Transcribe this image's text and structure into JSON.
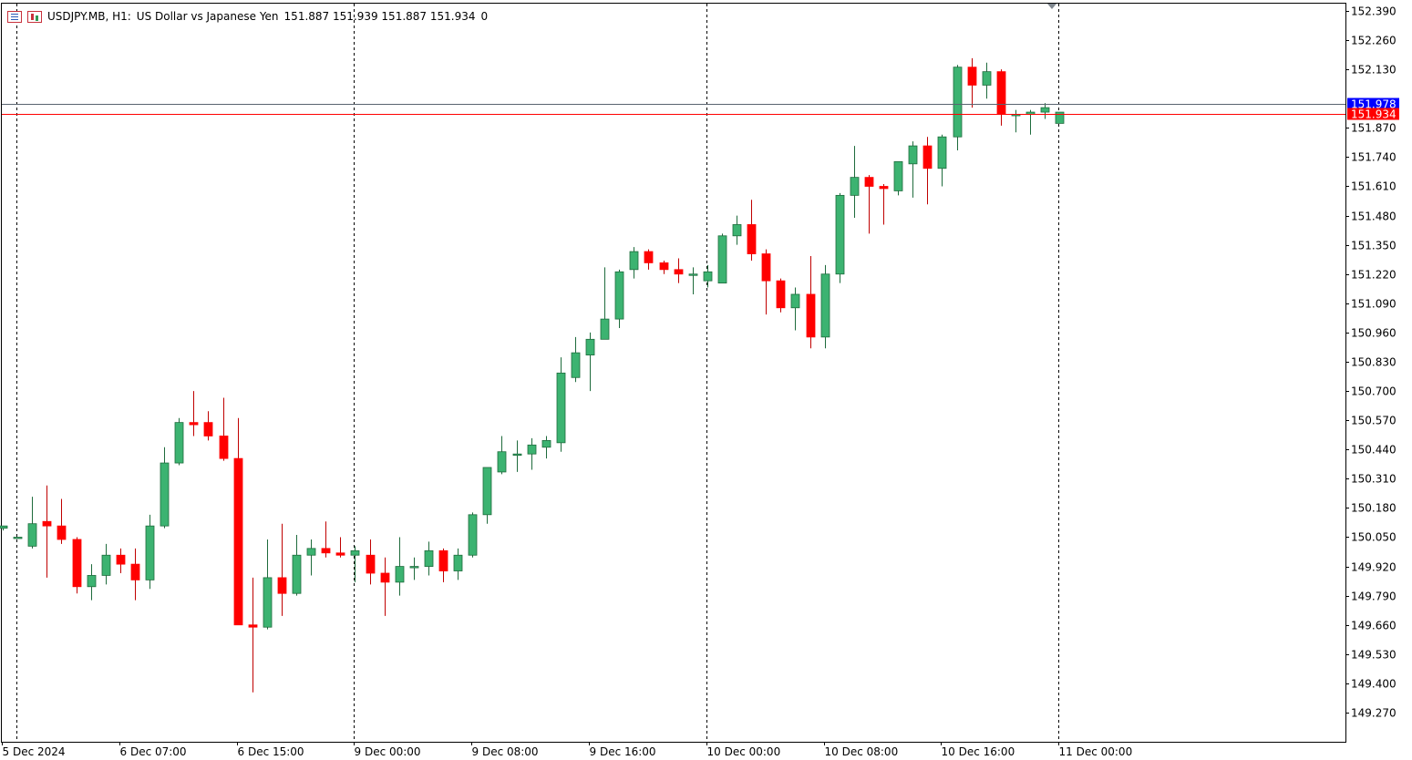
{
  "header": {
    "symbol": "USDJPY.MB, H1:",
    "description": "US Dollar vs Japanese Yen",
    "ohlc": "151.887 151.939 151.887 151.934",
    "volume": "0",
    "icons": [
      "list-icon",
      "chart-icon"
    ]
  },
  "chart_data": {
    "type": "candlestick",
    "title": "USDJPY.MB, H1:  US Dollar vs Japanese Yen",
    "xlabel": "",
    "ylabel": "",
    "ylim": [
      149.14,
      152.42
    ],
    "y_ticks": [
      "152.390",
      "152.260",
      "152.130",
      "151.870",
      "151.740",
      "151.610",
      "151.480",
      "151.350",
      "151.220",
      "151.090",
      "150.960",
      "150.830",
      "150.700",
      "150.570",
      "150.440",
      "150.310",
      "150.180",
      "150.050",
      "149.920",
      "149.790",
      "149.660",
      "149.530",
      "149.400",
      "149.270"
    ],
    "x_labels": [
      {
        "index": 0,
        "label": "5 Dec 2024"
      },
      {
        "index": 8,
        "label": "6 Dec 07:00"
      },
      {
        "index": 16,
        "label": "6 Dec 15:00"
      },
      {
        "index": 24,
        "label": "9 Dec 00:00"
      },
      {
        "index": 32,
        "label": "9 Dec 08:00"
      },
      {
        "index": 40,
        "label": "9 Dec 16:00"
      },
      {
        "index": 48,
        "label": "10 Dec 00:00"
      },
      {
        "index": 56,
        "label": "10 Dec 08:00"
      },
      {
        "index": 64,
        "label": "10 Dec 16:00"
      },
      {
        "index": 72,
        "label": "11 Dec 00:00"
      }
    ],
    "period_separators": [
      1,
      24,
      48,
      72
    ],
    "up_color": "#3cb371",
    "down_color": "#ff0000",
    "grid": false,
    "candles": [
      {
        "o": 150.09,
        "h": 150.1,
        "l": 150.08,
        "c": 150.1
      },
      {
        "o": 150.05,
        "h": 150.05,
        "l": 150.05,
        "c": 150.05
      },
      {
        "o": 150.01,
        "h": 150.23,
        "l": 150.0,
        "c": 150.11
      },
      {
        "o": 150.12,
        "h": 150.28,
        "l": 149.87,
        "c": 150.1
      },
      {
        "o": 150.1,
        "h": 150.22,
        "l": 150.02,
        "c": 150.04
      },
      {
        "o": 150.04,
        "h": 150.05,
        "l": 149.8,
        "c": 149.83
      },
      {
        "o": 149.83,
        "h": 149.93,
        "l": 149.77,
        "c": 149.88
      },
      {
        "o": 149.88,
        "h": 150.02,
        "l": 149.84,
        "c": 149.97
      },
      {
        "o": 149.97,
        "h": 150.0,
        "l": 149.89,
        "c": 149.93
      },
      {
        "o": 149.93,
        "h": 150.0,
        "l": 149.77,
        "c": 149.86
      },
      {
        "o": 149.86,
        "h": 150.15,
        "l": 149.82,
        "c": 150.1
      },
      {
        "o": 150.1,
        "h": 150.45,
        "l": 150.09,
        "c": 150.38
      },
      {
        "o": 150.38,
        "h": 150.58,
        "l": 150.37,
        "c": 150.56
      },
      {
        "o": 150.56,
        "h": 150.7,
        "l": 150.5,
        "c": 150.55
      },
      {
        "o": 150.56,
        "h": 150.61,
        "l": 150.48,
        "c": 150.5
      },
      {
        "o": 150.5,
        "h": 150.67,
        "l": 150.39,
        "c": 150.4
      },
      {
        "o": 150.4,
        "h": 150.58,
        "l": 149.66,
        "c": 149.66
      },
      {
        "o": 149.66,
        "h": 149.87,
        "l": 149.36,
        "c": 149.65
      },
      {
        "o": 149.65,
        "h": 150.04,
        "l": 149.64,
        "c": 149.87
      },
      {
        "o": 149.87,
        "h": 150.11,
        "l": 149.7,
        "c": 149.8
      },
      {
        "o": 149.8,
        "h": 150.06,
        "l": 149.79,
        "c": 149.97
      },
      {
        "o": 149.97,
        "h": 150.04,
        "l": 149.88,
        "c": 150.0
      },
      {
        "o": 150.0,
        "h": 150.12,
        "l": 149.96,
        "c": 149.98
      },
      {
        "o": 149.98,
        "h": 150.05,
        "l": 149.96,
        "c": 149.97
      },
      {
        "o": 149.97,
        "h": 150.01,
        "l": 149.85,
        "c": 149.99
      },
      {
        "o": 149.97,
        "h": 150.04,
        "l": 149.84,
        "c": 149.89
      },
      {
        "o": 149.89,
        "h": 149.96,
        "l": 149.7,
        "c": 149.85
      },
      {
        "o": 149.85,
        "h": 150.05,
        "l": 149.79,
        "c": 149.92
      },
      {
        "o": 149.92,
        "h": 149.96,
        "l": 149.86,
        "c": 149.92
      },
      {
        "o": 149.92,
        "h": 150.03,
        "l": 149.88,
        "c": 149.99
      },
      {
        "o": 149.99,
        "h": 150.0,
        "l": 149.85,
        "c": 149.9
      },
      {
        "o": 149.9,
        "h": 150.0,
        "l": 149.86,
        "c": 149.97
      },
      {
        "o": 149.97,
        "h": 150.16,
        "l": 149.96,
        "c": 150.15
      },
      {
        "o": 150.15,
        "h": 150.35,
        "l": 150.11,
        "c": 150.36
      },
      {
        "o": 150.34,
        "h": 150.5,
        "l": 150.33,
        "c": 150.43
      },
      {
        "o": 150.42,
        "h": 150.48,
        "l": 150.34,
        "c": 150.42
      },
      {
        "o": 150.42,
        "h": 150.49,
        "l": 150.35,
        "c": 150.46
      },
      {
        "o": 150.45,
        "h": 150.5,
        "l": 150.4,
        "c": 150.48
      },
      {
        "o": 150.47,
        "h": 150.85,
        "l": 150.43,
        "c": 150.78
      },
      {
        "o": 150.76,
        "h": 150.94,
        "l": 150.74,
        "c": 150.87
      },
      {
        "o": 150.86,
        "h": 150.96,
        "l": 150.7,
        "c": 150.93
      },
      {
        "o": 150.93,
        "h": 151.25,
        "l": 150.93,
        "c": 151.02
      },
      {
        "o": 151.02,
        "h": 151.24,
        "l": 150.98,
        "c": 151.23
      },
      {
        "o": 151.24,
        "h": 151.34,
        "l": 151.2,
        "c": 151.32
      },
      {
        "o": 151.32,
        "h": 151.33,
        "l": 151.24,
        "c": 151.27
      },
      {
        "o": 151.27,
        "h": 151.28,
        "l": 151.22,
        "c": 151.24
      },
      {
        "o": 151.24,
        "h": 151.29,
        "l": 151.18,
        "c": 151.22
      },
      {
        "o": 151.22,
        "h": 151.25,
        "l": 151.13,
        "c": 151.22
      },
      {
        "o": 151.19,
        "h": 151.26,
        "l": 151.16,
        "c": 151.23
      },
      {
        "o": 151.18,
        "h": 151.4,
        "l": 151.18,
        "c": 151.39
      },
      {
        "o": 151.39,
        "h": 151.48,
        "l": 151.35,
        "c": 151.44
      },
      {
        "o": 151.44,
        "h": 151.55,
        "l": 151.28,
        "c": 151.31
      },
      {
        "o": 151.31,
        "h": 151.33,
        "l": 151.04,
        "c": 151.19
      },
      {
        "o": 151.19,
        "h": 151.2,
        "l": 151.05,
        "c": 151.07
      },
      {
        "o": 151.07,
        "h": 151.16,
        "l": 150.97,
        "c": 151.13
      },
      {
        "o": 151.13,
        "h": 151.3,
        "l": 150.89,
        "c": 150.94
      },
      {
        "o": 150.94,
        "h": 151.26,
        "l": 150.89,
        "c": 151.22
      },
      {
        "o": 151.22,
        "h": 151.58,
        "l": 151.18,
        "c": 151.57
      },
      {
        "o": 151.57,
        "h": 151.79,
        "l": 151.47,
        "c": 151.65
      },
      {
        "o": 151.65,
        "h": 151.66,
        "l": 151.4,
        "c": 151.61
      },
      {
        "o": 151.61,
        "h": 151.62,
        "l": 151.44,
        "c": 151.6
      },
      {
        "o": 151.59,
        "h": 151.72,
        "l": 151.57,
        "c": 151.72
      },
      {
        "o": 151.71,
        "h": 151.81,
        "l": 151.56,
        "c": 151.79
      },
      {
        "o": 151.79,
        "h": 151.83,
        "l": 151.53,
        "c": 151.69
      },
      {
        "o": 151.69,
        "h": 151.84,
        "l": 151.61,
        "c": 151.83
      },
      {
        "o": 151.83,
        "h": 152.15,
        "l": 151.77,
        "c": 152.14
      },
      {
        "o": 152.14,
        "h": 152.18,
        "l": 151.96,
        "c": 152.06
      },
      {
        "o": 152.06,
        "h": 152.16,
        "l": 152.0,
        "c": 152.12
      },
      {
        "o": 152.12,
        "h": 152.13,
        "l": 151.88,
        "c": 151.93
      },
      {
        "o": 151.93,
        "h": 151.95,
        "l": 151.85,
        "c": 151.93
      },
      {
        "o": 151.93,
        "h": 151.95,
        "l": 151.84,
        "c": 151.94
      },
      {
        "o": 151.94,
        "h": 151.98,
        "l": 151.91,
        "c": 151.96
      },
      {
        "o": 151.89,
        "h": 151.94,
        "l": 151.89,
        "c": 151.94
      }
    ],
    "bid_line": {
      "value": 151.934,
      "label": "151.934",
      "color": "#ff0000"
    },
    "ask_line": {
      "value": 151.978,
      "label": "151.978",
      "color": "#0000ff"
    }
  }
}
